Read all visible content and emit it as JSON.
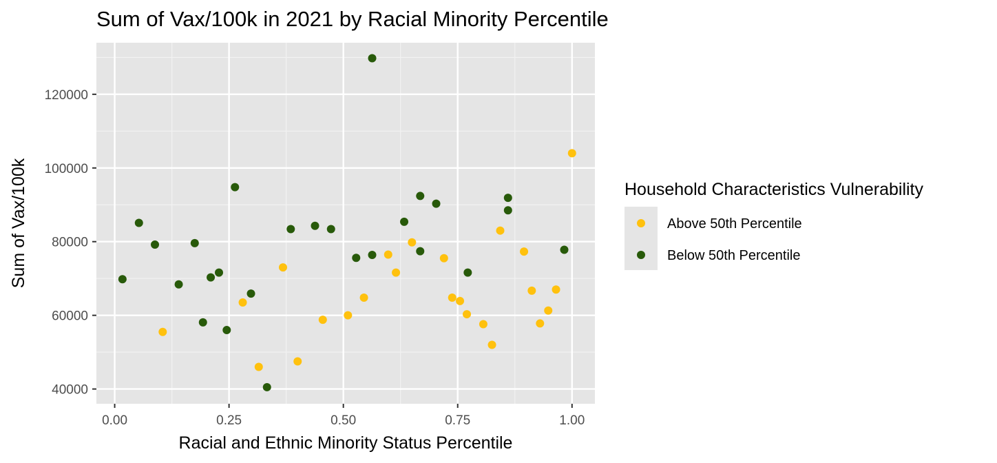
{
  "chart_data": {
    "type": "scatter",
    "title": "Sum of Vax/100k in 2021 by Racial Minority Percentile",
    "xlabel": "Racial and Ethnic Minority Status Percentile",
    "ylabel": "Sum of Vax/100k",
    "xlim": [
      -0.04,
      1.05
    ],
    "ylim": [
      36000,
      134000
    ],
    "x_ticks": [
      0,
      0.25,
      0.5,
      0.75,
      1
    ],
    "x_tick_labels": [
      "0.00",
      "0.25",
      "0.50",
      "0.75",
      "1.00"
    ],
    "y_ticks": [
      40000,
      60000,
      80000,
      100000,
      120000
    ],
    "y_tick_labels": [
      "40000",
      "60000",
      "80000",
      "100000",
      "120000"
    ],
    "grid": true,
    "panel_background": "#e5e5e5",
    "legend": {
      "title": "Household Characteristics Vulnerability",
      "position": "right"
    },
    "series": [
      {
        "name": "Above 50th Percentile",
        "color": "#ffc10e",
        "points": [
          [
            0.105,
            55500
          ],
          [
            0.28,
            63500
          ],
          [
            0.315,
            46000
          ],
          [
            0.368,
            73000
          ],
          [
            0.4,
            47500
          ],
          [
            0.455,
            58800
          ],
          [
            0.51,
            60000
          ],
          [
            0.545,
            64800
          ],
          [
            0.598,
            76500
          ],
          [
            0.615,
            71600
          ],
          [
            0.65,
            79800
          ],
          [
            0.72,
            75500
          ],
          [
            0.738,
            64800
          ],
          [
            0.755,
            63900
          ],
          [
            0.77,
            60300
          ],
          [
            0.806,
            57600
          ],
          [
            0.825,
            52000
          ],
          [
            0.843,
            83000
          ],
          [
            0.895,
            77300
          ],
          [
            0.912,
            66700
          ],
          [
            0.93,
            57800
          ],
          [
            0.948,
            61300
          ],
          [
            0.965,
            67000
          ],
          [
            1.0,
            104000
          ]
        ]
      },
      {
        "name": "Below 50th Percentile",
        "color": "#285a0a",
        "points": [
          [
            0.017,
            69800
          ],
          [
            0.053,
            85100
          ],
          [
            0.088,
            79200
          ],
          [
            0.14,
            68400
          ],
          [
            0.175,
            79600
          ],
          [
            0.193,
            58100
          ],
          [
            0.21,
            70300
          ],
          [
            0.228,
            71600
          ],
          [
            0.245,
            56000
          ],
          [
            0.263,
            94800
          ],
          [
            0.298,
            65900
          ],
          [
            0.333,
            40500
          ],
          [
            0.385,
            83400
          ],
          [
            0.438,
            84300
          ],
          [
            0.473,
            83400
          ],
          [
            0.528,
            75600
          ],
          [
            0.563,
            76400
          ],
          [
            0.563,
            129800
          ],
          [
            0.633,
            85400
          ],
          [
            0.668,
            77400
          ],
          [
            0.668,
            92400
          ],
          [
            0.703,
            90300
          ],
          [
            0.772,
            71600
          ],
          [
            0.86,
            91900
          ],
          [
            0.86,
            88500
          ],
          [
            0.983,
            77800
          ]
        ]
      }
    ]
  }
}
